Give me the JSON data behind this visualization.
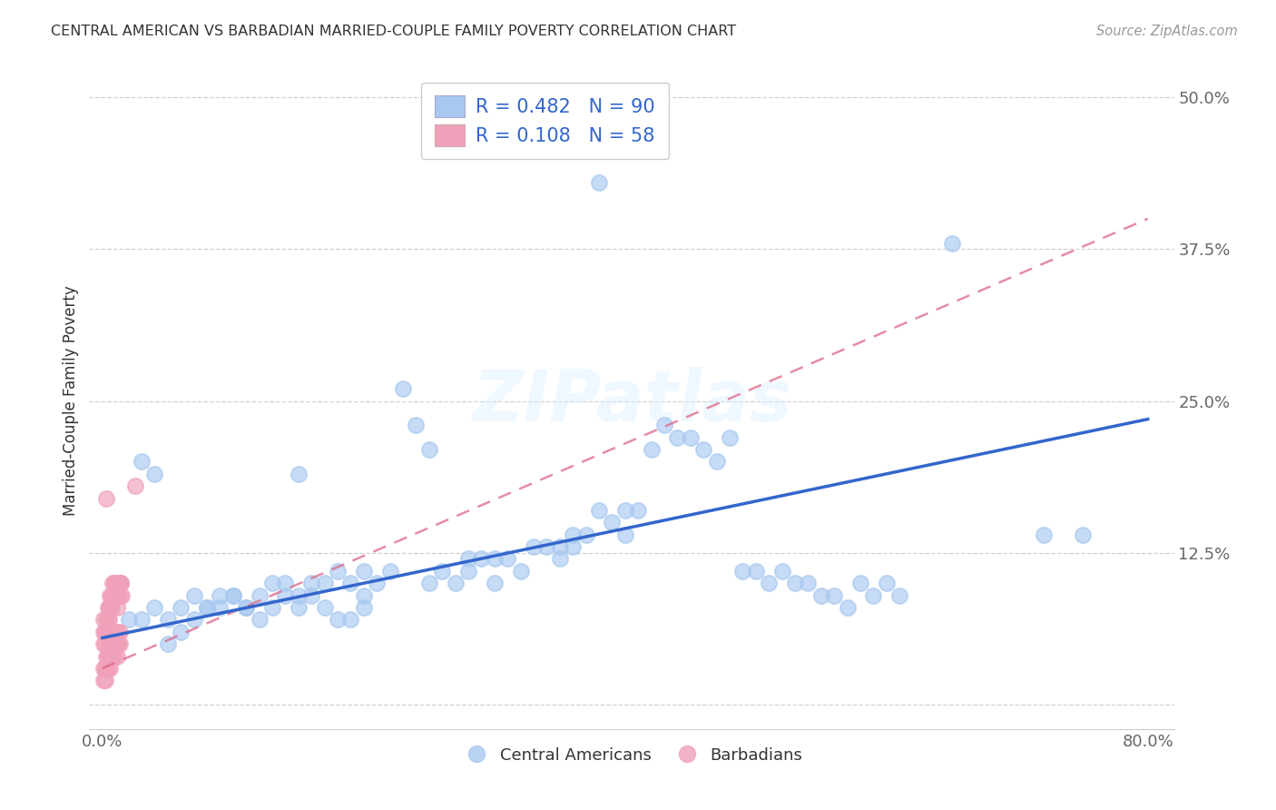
{
  "title": "CENTRAL AMERICAN VS BARBADIAN MARRIED-COUPLE FAMILY POVERTY CORRELATION CHART",
  "source": "Source: ZipAtlas.com",
  "ylabel": "Married-Couple Family Poverty",
  "xlabel": "",
  "xlim": [
    -0.01,
    0.82
  ],
  "ylim": [
    -0.02,
    0.52
  ],
  "xticks": [
    0.0,
    0.2,
    0.4,
    0.6,
    0.8
  ],
  "yticks": [
    0.0,
    0.125,
    0.25,
    0.375,
    0.5
  ],
  "xtick_labels": [
    "0.0%",
    "",
    "",
    "",
    "80.0%"
  ],
  "ytick_labels": [
    "",
    "12.5%",
    "25.0%",
    "37.5%",
    "50.0%"
  ],
  "watermark": "ZIPatlas",
  "blue_R": 0.482,
  "blue_N": 90,
  "pink_R": 0.108,
  "pink_N": 58,
  "blue_color": "#a8c8f0",
  "pink_color": "#f0a0b8",
  "blue_line_color": "#3366cc",
  "pink_line_color": "#dd6688",
  "legend_blue_label": "R = 0.482   N = 90",
  "legend_pink_label": "R = 0.108   N = 58",
  "background_color": "#ffffff",
  "grid_color": "#cccccc",
  "blue_x": [
    0.38,
    0.65,
    0.72,
    0.03,
    0.04,
    0.05,
    0.06,
    0.07,
    0.08,
    0.09,
    0.1,
    0.11,
    0.12,
    0.13,
    0.14,
    0.15,
    0.15,
    0.16,
    0.17,
    0.18,
    0.19,
    0.2,
    0.2,
    0.21,
    0.22,
    0.23,
    0.24,
    0.25,
    0.25,
    0.26,
    0.27,
    0.28,
    0.28,
    0.29,
    0.3,
    0.3,
    0.31,
    0.32,
    0.33,
    0.34,
    0.35,
    0.35,
    0.36,
    0.36,
    0.37,
    0.38,
    0.39,
    0.4,
    0.4,
    0.41,
    0.42,
    0.43,
    0.44,
    0.45,
    0.46,
    0.47,
    0.48,
    0.49,
    0.5,
    0.51,
    0.52,
    0.53,
    0.54,
    0.55,
    0.56,
    0.57,
    0.58,
    0.59,
    0.6,
    0.61,
    0.02,
    0.03,
    0.04,
    0.05,
    0.06,
    0.07,
    0.08,
    0.09,
    0.1,
    0.11,
    0.12,
    0.13,
    0.14,
    0.15,
    0.16,
    0.17,
    0.18,
    0.19,
    0.2,
    0.75
  ],
  "blue_y": [
    0.43,
    0.38,
    0.14,
    0.2,
    0.19,
    0.05,
    0.06,
    0.07,
    0.08,
    0.08,
    0.09,
    0.08,
    0.09,
    0.1,
    0.1,
    0.09,
    0.19,
    0.1,
    0.1,
    0.11,
    0.1,
    0.11,
    0.09,
    0.1,
    0.11,
    0.26,
    0.23,
    0.21,
    0.1,
    0.11,
    0.1,
    0.12,
    0.11,
    0.12,
    0.1,
    0.12,
    0.12,
    0.11,
    0.13,
    0.13,
    0.12,
    0.13,
    0.13,
    0.14,
    0.14,
    0.16,
    0.15,
    0.14,
    0.16,
    0.16,
    0.21,
    0.23,
    0.22,
    0.22,
    0.21,
    0.2,
    0.22,
    0.11,
    0.11,
    0.1,
    0.11,
    0.1,
    0.1,
    0.09,
    0.09,
    0.08,
    0.1,
    0.09,
    0.1,
    0.09,
    0.07,
    0.07,
    0.08,
    0.07,
    0.08,
    0.09,
    0.08,
    0.09,
    0.09,
    0.08,
    0.07,
    0.08,
    0.09,
    0.08,
    0.09,
    0.08,
    0.07,
    0.07,
    0.08,
    0.14
  ],
  "pink_x": [
    0.001,
    0.001,
    0.001,
    0.002,
    0.002,
    0.003,
    0.003,
    0.004,
    0.004,
    0.005,
    0.005,
    0.006,
    0.006,
    0.007,
    0.007,
    0.008,
    0.008,
    0.009,
    0.009,
    0.01,
    0.01,
    0.011,
    0.011,
    0.012,
    0.012,
    0.013,
    0.013,
    0.014,
    0.014,
    0.015,
    0.001,
    0.001,
    0.002,
    0.002,
    0.003,
    0.003,
    0.004,
    0.004,
    0.005,
    0.005,
    0.006,
    0.006,
    0.007,
    0.007,
    0.008,
    0.008,
    0.009,
    0.009,
    0.01,
    0.01,
    0.011,
    0.011,
    0.012,
    0.012,
    0.013,
    0.013,
    0.003,
    0.025
  ],
  "pink_y": [
    0.05,
    0.06,
    0.07,
    0.05,
    0.06,
    0.06,
    0.07,
    0.07,
    0.08,
    0.07,
    0.08,
    0.08,
    0.09,
    0.08,
    0.09,
    0.09,
    0.1,
    0.09,
    0.1,
    0.09,
    0.1,
    0.08,
    0.09,
    0.09,
    0.1,
    0.09,
    0.1,
    0.1,
    0.1,
    0.09,
    0.02,
    0.03,
    0.02,
    0.03,
    0.03,
    0.04,
    0.03,
    0.04,
    0.04,
    0.05,
    0.03,
    0.04,
    0.04,
    0.05,
    0.04,
    0.05,
    0.04,
    0.05,
    0.05,
    0.06,
    0.04,
    0.05,
    0.05,
    0.06,
    0.05,
    0.06,
    0.17,
    0.18
  ]
}
